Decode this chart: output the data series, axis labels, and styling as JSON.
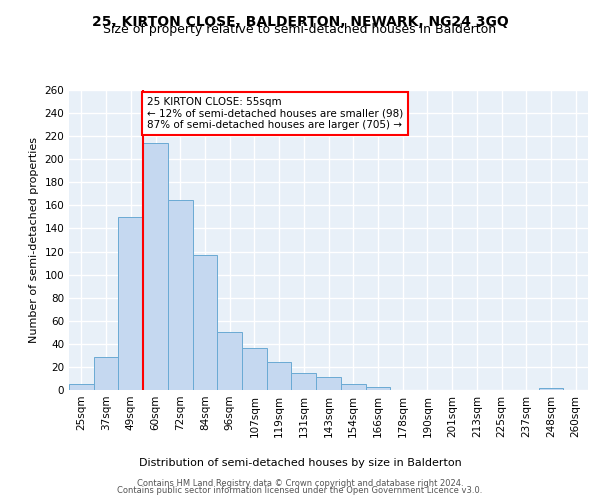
{
  "title": "25, KIRTON CLOSE, BALDERTON, NEWARK, NG24 3GQ",
  "subtitle": "Size of property relative to semi-detached houses in Balderton",
  "xlabel": "Distribution of semi-detached houses by size in Balderton",
  "ylabel": "Number of semi-detached properties",
  "categories": [
    "25sqm",
    "37sqm",
    "49sqm",
    "60sqm",
    "72sqm",
    "84sqm",
    "96sqm",
    "107sqm",
    "119sqm",
    "131sqm",
    "143sqm",
    "154sqm",
    "166sqm",
    "178sqm",
    "190sqm",
    "201sqm",
    "213sqm",
    "225sqm",
    "237sqm",
    "248sqm",
    "260sqm"
  ],
  "values": [
    5,
    29,
    150,
    214,
    165,
    117,
    50,
    36,
    24,
    15,
    11,
    5,
    3,
    0,
    0,
    0,
    0,
    0,
    0,
    2,
    0
  ],
  "bar_color": "#c5d8f0",
  "bar_edge_color": "#6aaad4",
  "red_line_index": 2.5,
  "annotation_text": "25 KIRTON CLOSE: 55sqm\n← 12% of semi-detached houses are smaller (98)\n87% of semi-detached houses are larger (705) →",
  "annotation_box_color": "white",
  "annotation_box_edge": "red",
  "ylim": [
    0,
    260
  ],
  "yticks": [
    0,
    20,
    40,
    60,
    80,
    100,
    120,
    140,
    160,
    180,
    200,
    220,
    240,
    260
  ],
  "footer1": "Contains HM Land Registry data © Crown copyright and database right 2024.",
  "footer2": "Contains public sector information licensed under the Open Government Licence v3.0.",
  "bg_color": "#e8f0f8",
  "grid_color": "white",
  "title_fontsize": 10,
  "subtitle_fontsize": 9,
  "xlabel_fontsize": 8,
  "ylabel_fontsize": 8,
  "tick_fontsize": 7.5,
  "annotation_fontsize": 7.5,
  "footer_fontsize": 6
}
